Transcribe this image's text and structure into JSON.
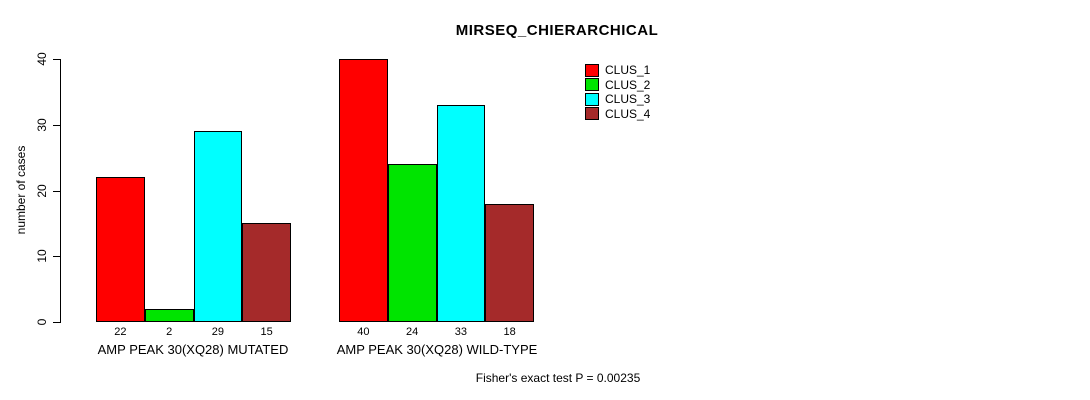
{
  "title": "MIRSEQ_CHIERARCHICAL",
  "footer": "Fisher's exact test P = 0.00235",
  "chart_data": {
    "type": "bar",
    "title": "MIRSEQ_CHIERARCHICAL",
    "xlabel": "",
    "ylabel": "number of cases",
    "ylim": [
      0,
      40
    ],
    "yticks": [
      0,
      10,
      20,
      30,
      40
    ],
    "grid": false,
    "legend_position": "top-right",
    "bar_value_labels_shown": true,
    "categories": [
      "AMP PEAK 30(XQ28) MUTATED",
      "AMP PEAK 30(XQ28) WILD-TYPE"
    ],
    "series": [
      {
        "name": "CLUS_1",
        "color": "#FF0000",
        "values": [
          22,
          40
        ]
      },
      {
        "name": "CLUS_2",
        "color": "#00E400",
        "values": [
          2,
          24
        ]
      },
      {
        "name": "CLUS_3",
        "color": "#00FFFF",
        "values": [
          29,
          33
        ]
      },
      {
        "name": "CLUS_4",
        "color": "#A52A2A",
        "values": [
          15,
          18
        ]
      }
    ],
    "annotation": "Fisher's exact test P = 0.00235"
  }
}
